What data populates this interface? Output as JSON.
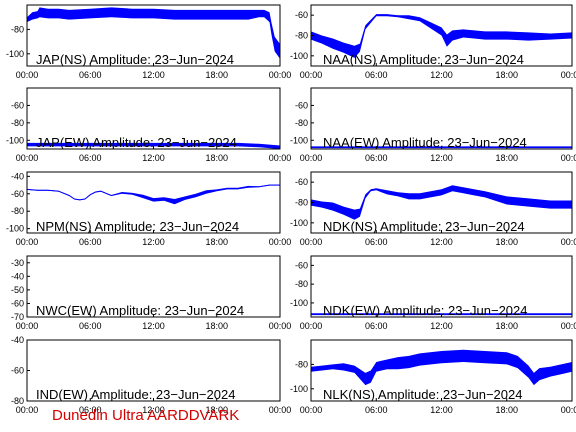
{
  "footer": "Dunedin Ultra AARDDVARK",
  "colors": {
    "trace": "#0000ff",
    "footer": "#d40000",
    "axis": "#000000"
  },
  "x_ticks": [
    "00:00",
    "06:00",
    "12:00",
    "18:00",
    "00:00"
  ],
  "chart_data": [
    {
      "type": "line",
      "title": "JAP(NS) Amplitude: 23−Jun−2024",
      "ylim": [
        -110,
        -60
      ],
      "yticks": [
        "-80",
        "-100"
      ],
      "ytick_values": [
        -80,
        -100
      ],
      "series": [
        {
          "x": [
            0,
            0.5,
            1,
            1.2,
            2,
            3,
            4,
            6,
            8,
            10,
            12,
            14,
            16,
            18,
            19,
            20,
            21,
            22,
            22.5,
            23,
            23.2,
            23.5,
            24
          ],
          "y": [
            -72,
            -69,
            -68,
            -66,
            -67,
            -67,
            -68,
            -67,
            -66,
            -67,
            -67,
            -68,
            -68,
            -68,
            -68,
            -68,
            -68,
            -67,
            -67,
            -70,
            -80,
            -92,
            -98
          ],
          "band": [
            2,
            3,
            3,
            4,
            4,
            4,
            4,
            4,
            4,
            4,
            4,
            4,
            4,
            4,
            4,
            4,
            4,
            3,
            3,
            4,
            5,
            6,
            6
          ]
        }
      ]
    },
    {
      "type": "line",
      "title": "NAA(NS) Amplitude: 23−Jun−2024",
      "ylim": [
        -110,
        -50
      ],
      "yticks": [
        "-60",
        "-80",
        "-100"
      ],
      "ytick_values": [
        -60,
        -80,
        -100
      ],
      "series": [
        {
          "x": [
            0,
            1,
            2,
            3,
            4,
            4.5,
            5,
            6,
            7,
            8,
            9,
            10,
            11,
            12,
            12.5,
            13,
            14,
            15,
            16,
            17,
            18,
            20,
            22,
            24
          ],
          "y": [
            -80,
            -84,
            -88,
            -92,
            -96,
            -92,
            -72,
            -60,
            -60,
            -61,
            -62,
            -64,
            -70,
            -76,
            -85,
            -80,
            -78,
            -79,
            -80,
            -80,
            -80,
            -81,
            -81,
            -80
          ],
          "band": [
            4,
            4,
            5,
            5,
            6,
            4,
            2,
            1,
            1,
            1,
            2,
            2,
            3,
            4,
            6,
            5,
            4,
            4,
            4,
            4,
            4,
            4,
            3,
            3
          ]
        }
      ]
    },
    {
      "type": "line",
      "title": "JAP(EW) Amplitude: 23−Jun−2024",
      "ylim": [
        -110,
        -40
      ],
      "yticks": [
        "-60",
        "-80",
        "-100"
      ],
      "ytick_values": [
        -60,
        -80,
        -100
      ],
      "series": [
        {
          "x": [
            0,
            2,
            4,
            6,
            8,
            10,
            12,
            14,
            16,
            18,
            19,
            20,
            22,
            23,
            24
          ],
          "y": [
            -105,
            -105,
            -105,
            -105,
            -105,
            -105,
            -105,
            -105,
            -105,
            -105,
            -105,
            -105,
            -106,
            -107,
            -108
          ],
          "band": [
            2,
            2,
            2,
            2,
            2,
            2,
            2,
            2,
            2,
            2,
            2,
            2,
            2,
            2,
            2
          ]
        }
      ]
    },
    {
      "type": "line",
      "title": "NAA(EW) Amplitude: 23−Jun−2024",
      "ylim": [
        -110,
        -40
      ],
      "yticks": [
        "-60",
        "-80",
        "-100"
      ],
      "ytick_values": [
        -60,
        -80,
        -100
      ],
      "series": [
        {
          "x": [
            0,
            2,
            4,
            6,
            8,
            10,
            12,
            14,
            16,
            18,
            20,
            22,
            24
          ],
          "y": [
            -108,
            -108,
            -108,
            -108,
            -108,
            -108,
            -108,
            -108,
            -108,
            -108,
            -108,
            -108,
            -108
          ],
          "band": [
            1,
            1,
            1,
            1,
            1,
            1,
            1,
            1,
            1,
            1,
            1,
            1,
            1
          ]
        }
      ]
    },
    {
      "type": "line",
      "title": "NPM(NS) Amplitude: 23−Jun−2024",
      "ylim": [
        -105,
        -35
      ],
      "yticks": [
        "-40",
        "-60",
        "-80",
        "-100"
      ],
      "ytick_values": [
        -40,
        -60,
        -80,
        -100
      ],
      "series": [
        {
          "x": [
            0,
            1,
            2,
            3,
            4,
            4.5,
            5,
            5.5,
            6,
            6.5,
            7,
            8,
            9,
            10,
            11,
            12,
            13,
            14,
            15,
            16,
            17,
            18,
            19,
            20,
            21,
            22,
            23,
            24
          ],
          "y": [
            -55,
            -56,
            -56,
            -57,
            -62,
            -66,
            -67,
            -66,
            -61,
            -58,
            -57,
            -62,
            -59,
            -60,
            -63,
            -67,
            -66,
            -69,
            -65,
            -62,
            -58,
            -56,
            -54,
            -54,
            -52,
            -52,
            -50,
            -50
          ],
          "band": [
            0.5,
            0.5,
            0.5,
            0.5,
            0.5,
            0.5,
            0.5,
            0.5,
            0.5,
            0.5,
            0.5,
            0.5,
            1,
            1,
            2,
            2,
            2,
            3,
            2,
            2,
            2,
            1,
            1,
            1,
            1,
            0.5,
            0.5,
            0.5
          ]
        }
      ]
    },
    {
      "type": "line",
      "title": "NDK(NS) Amplitude: 23−Jun−2024",
      "ylim": [
        -110,
        -50
      ],
      "yticks": [
        "-60",
        "-80",
        "-100"
      ],
      "ytick_values": [
        -60,
        -80,
        -100
      ],
      "series": [
        {
          "x": [
            0,
            1,
            2,
            3,
            4,
            4.5,
            5,
            5.5,
            6,
            7,
            8,
            9,
            10,
            11,
            12,
            13,
            14,
            15,
            16,
            18,
            20,
            22,
            24
          ],
          "y": [
            -80,
            -82,
            -84,
            -88,
            -92,
            -90,
            -74,
            -68,
            -67,
            -70,
            -72,
            -74,
            -74,
            -72,
            -70,
            -66,
            -68,
            -70,
            -72,
            -78,
            -80,
            -82,
            -82
          ],
          "band": [
            3,
            3,
            4,
            4,
            5,
            4,
            2,
            1,
            1,
            2,
            2,
            3,
            3,
            3,
            3,
            3,
            3,
            3,
            3,
            4,
            4,
            4,
            4
          ]
        }
      ]
    },
    {
      "type": "line",
      "title": "NWC(EW) Amplitude: 23−Jun−2024",
      "ylim": [
        -70,
        -25
      ],
      "yticks": [
        "-30",
        "-40",
        "-50",
        "-60",
        "-70"
      ],
      "ytick_values": [
        -30,
        -40,
        -50,
        -60,
        -70
      ],
      "series": []
    },
    {
      "type": "line",
      "title": "NDK(EW) Amplitude: 23−Jun−2024",
      "ylim": [
        -115,
        -50
      ],
      "yticks": [
        "-60",
        "-80",
        "-100"
      ],
      "ytick_values": [
        -60,
        -80,
        -100
      ],
      "series": [
        {
          "x": [
            0,
            2,
            4,
            6,
            8,
            10,
            12,
            14,
            16,
            18,
            20,
            22,
            24
          ],
          "y": [
            -112,
            -112,
            -112,
            -112,
            -112,
            -112,
            -112,
            -112,
            -112,
            -112,
            -112,
            -112,
            -112
          ],
          "band": [
            1,
            1,
            1,
            1,
            1,
            1,
            1,
            1,
            1,
            1,
            1,
            1,
            1
          ]
        }
      ]
    },
    {
      "type": "line",
      "title": "IND(EW) Amplitude: 23−Jun−2024",
      "ylim": [
        -80,
        -40
      ],
      "yticks": [
        "-40",
        "-60",
        "-80"
      ],
      "ytick_values": [
        -40,
        -60,
        -80
      ],
      "series": []
    },
    {
      "type": "line",
      "title": "NLK(NS) Amplitude: 23−Jun−2024",
      "ylim": [
        -110,
        -60
      ],
      "yticks": [
        "-80",
        "-100"
      ],
      "ytick_values": [
        -80,
        -100
      ],
      "series": [
        {
          "x": [
            0,
            1,
            2,
            3,
            4,
            5,
            5.5,
            6,
            7,
            8,
            9,
            10,
            12,
            14,
            16,
            18,
            19,
            20,
            20.5,
            21,
            22,
            23,
            24
          ],
          "y": [
            -84,
            -83,
            -82,
            -82,
            -84,
            -92,
            -90,
            -82,
            -80,
            -79,
            -78,
            -76,
            -74,
            -73,
            -74,
            -75,
            -78,
            -86,
            -92,
            -88,
            -86,
            -84,
            -82
          ],
          "band": [
            2,
            2,
            2,
            3,
            3,
            5,
            5,
            4,
            4,
            5,
            5,
            5,
            5,
            5,
            5,
            5,
            5,
            5,
            5,
            5,
            4,
            4,
            4
          ]
        }
      ]
    }
  ]
}
